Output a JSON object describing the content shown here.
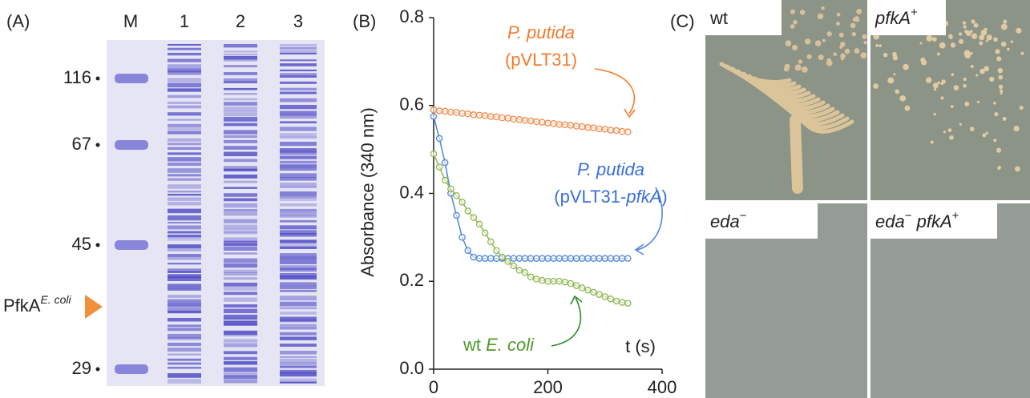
{
  "panel_a": {
    "label": "(A)",
    "lanes": [
      "M",
      "1",
      "2",
      "3"
    ],
    "markers": [
      "116",
      "67",
      "45",
      "29"
    ],
    "arrow_label": {
      "main": "PfkA",
      "sup": "E. coli"
    }
  },
  "chart_data": {
    "type": "line",
    "panel_label": "(B)",
    "x_label": "t (s)",
    "y_label": "Absorbance (340 nm)",
    "x": [
      0,
      10,
      20,
      30,
      40,
      50,
      60,
      70,
      80,
      90,
      100,
      110,
      120,
      130,
      140,
      150,
      160,
      170,
      180,
      190,
      200,
      210,
      220,
      230,
      240,
      250,
      260,
      270,
      280,
      290,
      300,
      310,
      320,
      330,
      340
    ],
    "series": [
      {
        "color": "#f08a4b",
        "values": [
          0.59,
          0.588,
          0.587,
          0.585,
          0.584,
          0.582,
          0.581,
          0.579,
          0.578,
          0.577,
          0.575,
          0.574,
          0.572,
          0.571,
          0.569,
          0.568,
          0.566,
          0.565,
          0.563,
          0.562,
          0.56,
          0.559,
          0.557,
          0.556,
          0.555,
          0.553,
          0.552,
          0.55,
          0.549,
          0.547,
          0.546,
          0.544,
          0.543,
          0.541,
          0.54
        ]
      },
      {
        "color": "#4f86d8",
        "values": [
          0.575,
          0.525,
          0.47,
          0.4,
          0.35,
          0.3,
          0.27,
          0.255,
          0.252,
          0.252,
          0.252,
          0.252,
          0.252,
          0.252,
          0.252,
          0.252,
          0.252,
          0.252,
          0.252,
          0.252,
          0.252,
          0.252,
          0.252,
          0.252,
          0.252,
          0.252,
          0.252,
          0.252,
          0.252,
          0.252,
          0.252,
          0.252,
          0.252,
          0.252,
          0.252
        ]
      },
      {
        "color": "#8fb54f",
        "values": [
          0.49,
          0.46,
          0.43,
          0.41,
          0.395,
          0.38,
          0.36,
          0.345,
          0.33,
          0.31,
          0.29,
          0.27,
          0.255,
          0.245,
          0.235,
          0.225,
          0.22,
          0.21,
          0.205,
          0.202,
          0.2,
          0.2,
          0.2,
          0.198,
          0.195,
          0.19,
          0.185,
          0.18,
          0.175,
          0.17,
          0.165,
          0.16,
          0.155,
          0.152,
          0.15
        ]
      }
    ],
    "xlim": [
      0,
      400
    ],
    "xticks": [
      0,
      200,
      400
    ],
    "ylim": [
      0,
      0.8
    ],
    "yticks": [
      {
        "value": 0,
        "label": "0.0"
      },
      0.2,
      0.4,
      0.6,
      0.8
    ],
    "annotations": [
      {
        "color": "#f27a2c",
        "lines": [
          [
            {
              "text": "P. putida",
              "italic": true
            }
          ],
          [
            {
              "text": "(pVLT31)",
              "italic": false
            }
          ]
        ]
      },
      {
        "color": "#3a6fd8",
        "lines": [
          [
            {
              "text": "P. putida",
              "italic": true
            }
          ],
          [
            {
              "text": "(pVLT31-",
              "italic": false
            },
            {
              "text": "pfkA",
              "italic": true
            },
            {
              "text": ")",
              "italic": false
            }
          ]
        ]
      },
      {
        "color": "#4f9a2a",
        "lines": [
          [
            {
              "text": "wt ",
              "italic": false
            },
            {
              "text": "E. coli",
              "italic": true
            }
          ]
        ]
      }
    ]
  },
  "panel_c": {
    "label": "(C)",
    "images": [
      [
        {
          "text": "wt",
          "italic": false
        }
      ],
      [
        {
          "text": "pfkA",
          "italic": true
        },
        {
          "text": "+",
          "sup": true
        }
      ],
      [
        {
          "text": "eda",
          "italic": true
        },
        {
          "text": "−",
          "sup": true
        }
      ],
      [
        {
          "text": "eda",
          "italic": true
        },
        {
          "text": "−",
          "sup": true
        },
        {
          "text": " pfkA",
          "italic": true
        },
        {
          "text": "+",
          "sup": true
        }
      ]
    ]
  }
}
